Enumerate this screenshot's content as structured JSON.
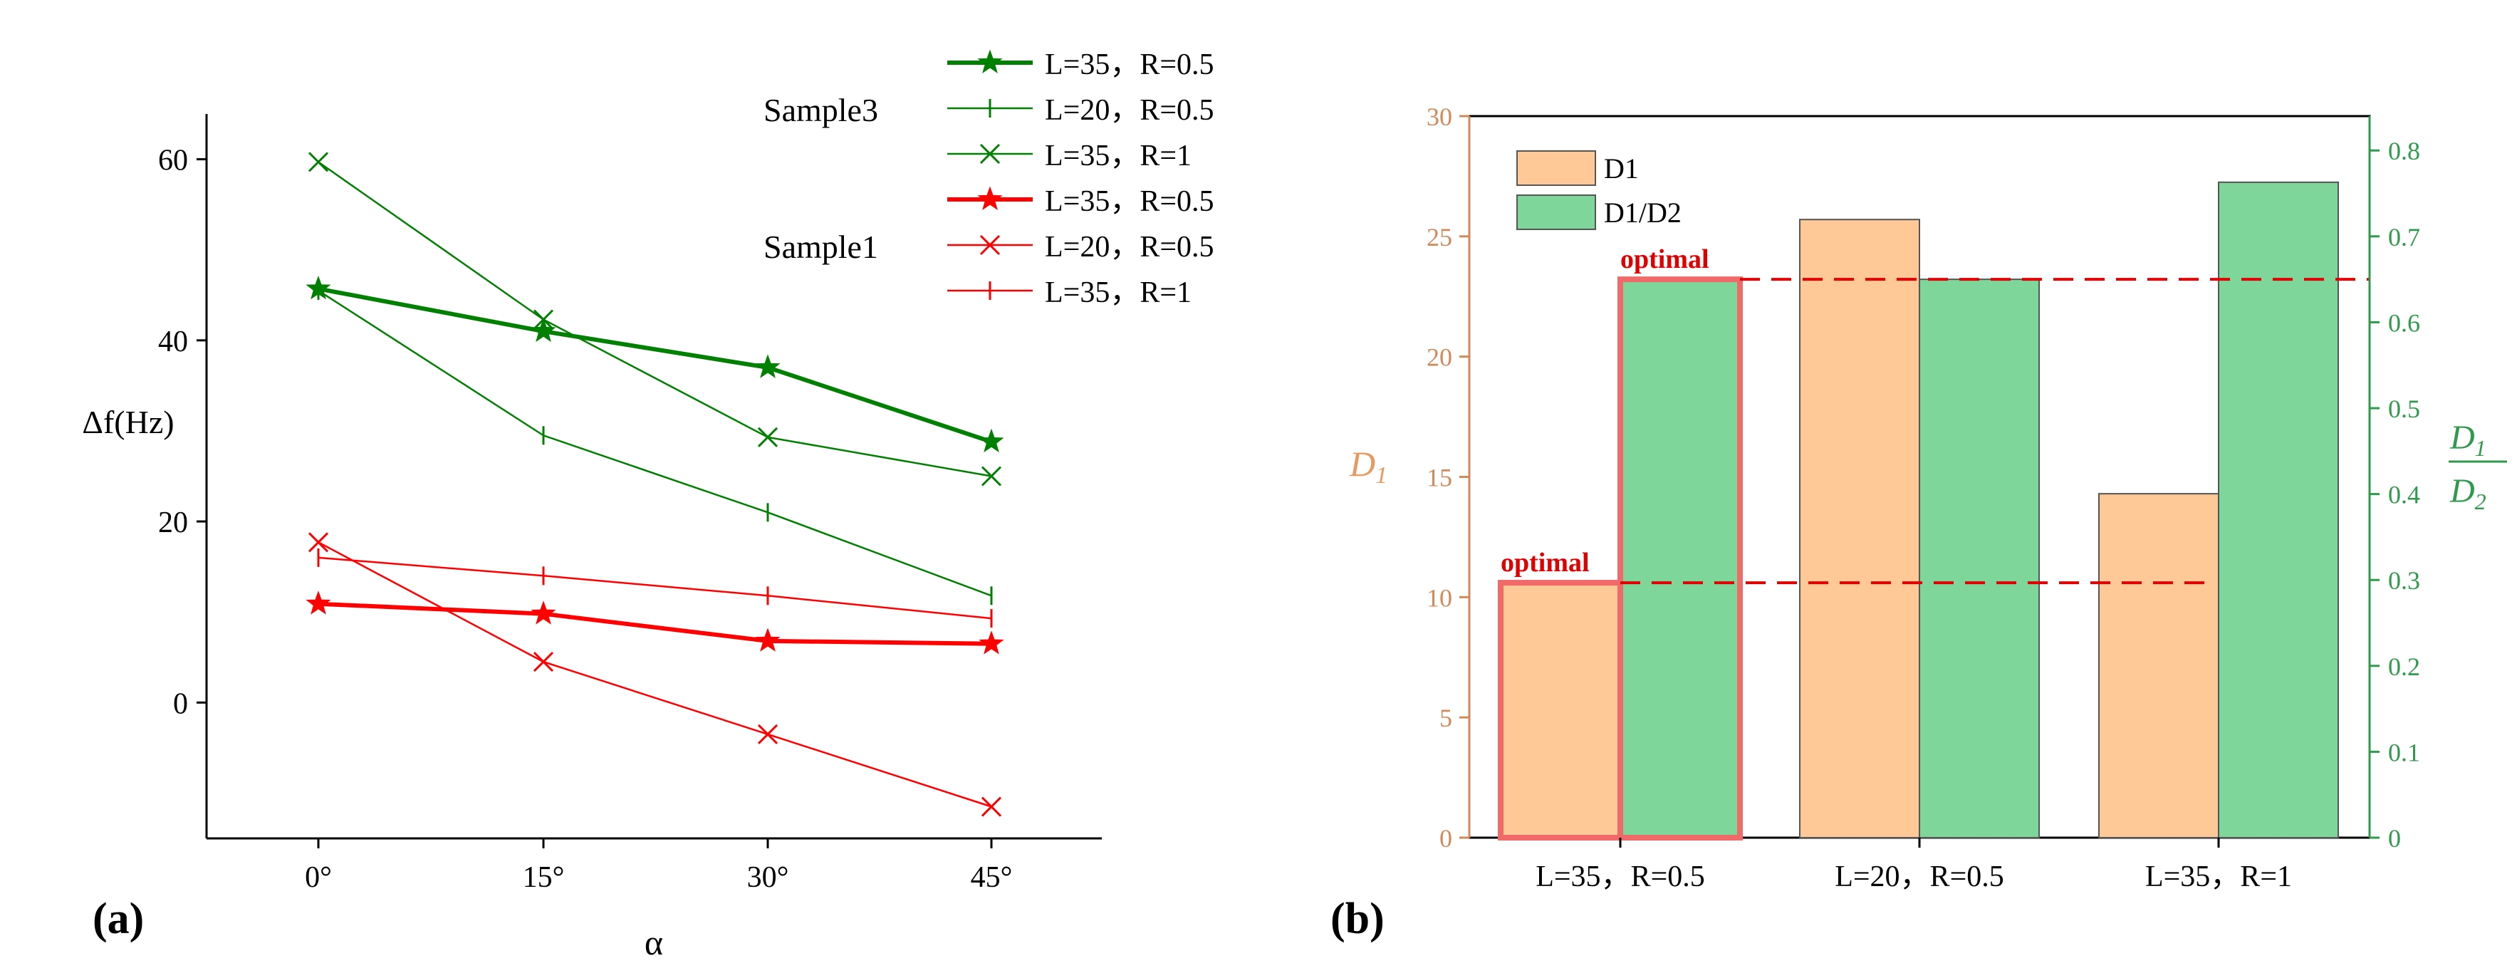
{
  "chart_data": [
    {
      "type": "line",
      "panel_label": "(a)",
      "xlabel": "α",
      "ylabel": "Δf(Hz)",
      "categories": [
        "0°",
        "15°",
        "30°",
        "45°"
      ],
      "ylim": [
        -15,
        65
      ],
      "yticks": [
        0,
        20,
        40,
        60
      ],
      "legend_groups": [
        "Sample3",
        "Sample1"
      ],
      "series": [
        {
          "name": "L=35，R=0.5",
          "group": "Sample3",
          "color": "#008000",
          "marker": "star",
          "weight": "bold",
          "values": [
            45.7,
            41.0,
            37.0,
            28.8
          ]
        },
        {
          "name": "L=20，R=0.5",
          "group": "Sample3",
          "color": "#008000",
          "marker": "plus",
          "weight": "thin",
          "values": [
            45.5,
            29.5,
            21.0,
            11.8
          ]
        },
        {
          "name": "L=35，R=1",
          "group": "Sample3",
          "color": "#008000",
          "marker": "x",
          "weight": "thin",
          "values": [
            59.7,
            42.3,
            29.3,
            25.0
          ]
        },
        {
          "name": "L=35，R=0.5",
          "group": "Sample1",
          "color": "#ff0000",
          "marker": "star",
          "weight": "bold",
          "values": [
            10.9,
            9.8,
            6.8,
            6.5
          ]
        },
        {
          "name": "L=20，R=0.5",
          "group": "Sample1",
          "color": "#ff0000",
          "marker": "x",
          "weight": "thin",
          "values": [
            17.7,
            4.5,
            -3.5,
            -11.5
          ]
        },
        {
          "name": "L=35，R=1",
          "group": "Sample1",
          "color": "#ff0000",
          "marker": "plus",
          "weight": "thin",
          "values": [
            16.0,
            14.0,
            11.8,
            9.3
          ]
        }
      ]
    },
    {
      "type": "bar",
      "panel_label": "(b)",
      "categories": [
        "L=35，R=0.5",
        "L=20，R=0.5",
        "L=35，R=1"
      ],
      "series": [
        {
          "name": "D1",
          "axis": "left",
          "color": "#ffc897",
          "values": [
            10.6,
            25.7,
            14.3
          ]
        },
        {
          "name": "D1/D2",
          "axis": "right",
          "color": "#7fd69b",
          "values": [
            0.65,
            0.65,
            0.763
          ]
        }
      ],
      "ylabel_left": {
        "base": "D",
        "sub": "1"
      },
      "ylabel_right": {
        "num_base": "D",
        "num_sub": "1",
        "den_base": "D",
        "den_sub": "2"
      },
      "ylim_left": [
        0,
        30
      ],
      "yticks_left": [
        0,
        5,
        10,
        15,
        20,
        25,
        30
      ],
      "ylim_right": [
        0,
        0.84
      ],
      "yticks_right": [
        "0",
        "0.1",
        "0.2",
        "0.3",
        "0.4",
        "0.5",
        "0.6",
        "0.7",
        "0.8"
      ],
      "left_axis_color": "#d2895a",
      "right_axis_color": "#2e9a4b",
      "annotations": [
        {
          "text": "optimal",
          "refers_to": "D1",
          "category_index": 0,
          "line_value": 10.6,
          "axis": "left"
        },
        {
          "text": "optimal",
          "refers_to": "D1/D2",
          "category_index": 0,
          "line_value": 0.65,
          "axis": "right"
        }
      ]
    }
  ]
}
